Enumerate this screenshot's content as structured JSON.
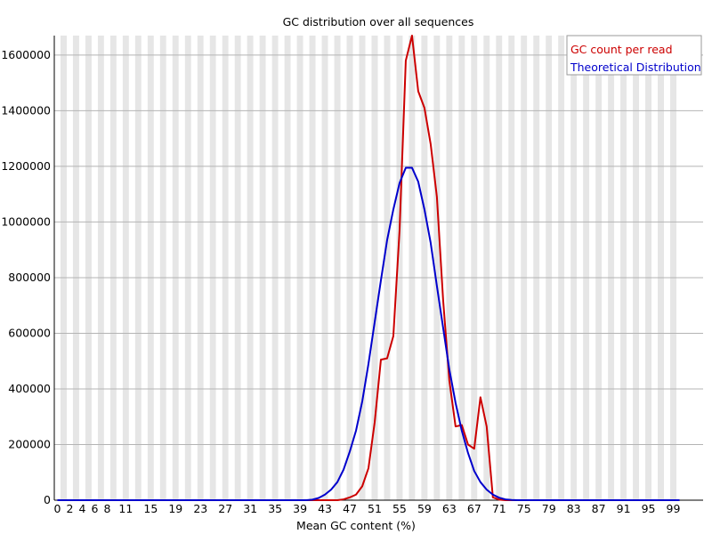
{
  "chart_data": {
    "type": "line",
    "title": "GC distribution over all sequences",
    "xlabel": "Mean GC content (%)",
    "ylabel": "",
    "x_tick_labels": [
      "0",
      "2",
      "4",
      "6",
      "8",
      "11",
      "15",
      "19",
      "23",
      "27",
      "31",
      "35",
      "39",
      "43",
      "47",
      "51",
      "55",
      "59",
      "63",
      "67",
      "71",
      "75",
      "79",
      "83",
      "87",
      "91",
      "95",
      "99"
    ],
    "y_tick_labels": [
      "0",
      "200000",
      "400000",
      "600000",
      "800000",
      "1000000",
      "1200000",
      "1400000",
      "1600000"
    ],
    "ylim": [
      0,
      1670000
    ],
    "grid": "horizontal lines, alternating gray/white vertical bands per GC bin",
    "legend_position": "top-right",
    "series": [
      {
        "name": "GC count per read",
        "color": "#cc0000",
        "x": [
          0,
          1,
          2,
          3,
          4,
          5,
          6,
          7,
          8,
          9,
          10,
          11,
          12,
          13,
          14,
          15,
          16,
          17,
          18,
          19,
          20,
          21,
          22,
          23,
          24,
          25,
          26,
          27,
          28,
          29,
          30,
          31,
          32,
          33,
          34,
          35,
          36,
          37,
          38,
          39,
          40,
          41,
          42,
          43,
          44,
          45,
          46,
          47,
          48,
          49,
          50,
          51,
          52,
          53,
          54,
          55,
          56,
          57,
          58,
          59,
          60,
          61,
          62,
          63,
          64,
          65,
          66,
          67,
          68,
          69,
          70,
          71,
          72,
          73,
          74,
          75,
          76,
          77,
          78,
          79,
          80,
          81,
          82,
          83,
          84,
          85,
          86,
          87,
          88,
          89,
          90,
          91,
          92,
          93,
          94,
          95,
          96,
          97,
          98,
          99,
          100
        ],
        "values": [
          0,
          0,
          0,
          0,
          0,
          0,
          0,
          0,
          0,
          0,
          0,
          0,
          0,
          0,
          0,
          0,
          0,
          0,
          0,
          0,
          0,
          0,
          0,
          0,
          0,
          0,
          0,
          0,
          0,
          0,
          0,
          0,
          0,
          0,
          0,
          0,
          0,
          0,
          0,
          0,
          0,
          0,
          0,
          0,
          0,
          0,
          3000,
          10000,
          20000,
          50000,
          115000,
          280000,
          505000,
          510000,
          590000,
          970000,
          1580000,
          1670000,
          1470000,
          1410000,
          1280000,
          1090000,
          720000,
          430000,
          265000,
          270000,
          200000,
          185000,
          370000,
          265000,
          10000,
          2000,
          0,
          0,
          0,
          0,
          0,
          0,
          0,
          0,
          0,
          0,
          0,
          0,
          0,
          0,
          0,
          0,
          0,
          0,
          0,
          0,
          0,
          0,
          0,
          0,
          0,
          0,
          0,
          0,
          0
        ]
      },
      {
        "name": "Theoretical Distribution",
        "color": "#0000cc",
        "x": [
          0,
          1,
          2,
          3,
          4,
          5,
          6,
          7,
          8,
          9,
          10,
          11,
          12,
          13,
          14,
          15,
          16,
          17,
          18,
          19,
          20,
          21,
          22,
          23,
          24,
          25,
          26,
          27,
          28,
          29,
          30,
          31,
          32,
          33,
          34,
          35,
          36,
          37,
          38,
          39,
          40,
          41,
          42,
          43,
          44,
          45,
          46,
          47,
          48,
          49,
          50,
          51,
          52,
          53,
          54,
          55,
          56,
          57,
          58,
          59,
          60,
          61,
          62,
          63,
          64,
          65,
          66,
          67,
          68,
          69,
          70,
          71,
          72,
          73,
          74,
          75,
          76,
          77,
          78,
          79,
          80,
          81,
          82,
          83,
          84,
          85,
          86,
          87,
          88,
          89,
          90,
          91,
          92,
          93,
          94,
          95,
          96,
          97,
          98,
          99,
          100
        ],
        "values": [
          0,
          0,
          0,
          0,
          0,
          0,
          0,
          0,
          0,
          0,
          0,
          0,
          0,
          0,
          0,
          0,
          0,
          0,
          0,
          0,
          0,
          0,
          0,
          0,
          0,
          0,
          0,
          0,
          0,
          0,
          0,
          0,
          0,
          0,
          0,
          0,
          0,
          0,
          0,
          0,
          0,
          2000,
          8000,
          20000,
          38000,
          65000,
          110000,
          175000,
          250000,
          355000,
          490000,
          640000,
          790000,
          935000,
          1045000,
          1140000,
          1195000,
          1195000,
          1145000,
          1045000,
          925000,
          770000,
          620000,
          470000,
          350000,
          250000,
          170000,
          105000,
          65000,
          38000,
          20000,
          9000,
          3000,
          1000,
          0,
          0,
          0,
          0,
          0,
          0,
          0,
          0,
          0,
          0,
          0,
          0,
          0,
          0,
          0,
          0,
          0,
          0,
          0,
          0,
          0,
          0,
          0,
          0,
          0,
          0,
          0
        ]
      }
    ]
  }
}
